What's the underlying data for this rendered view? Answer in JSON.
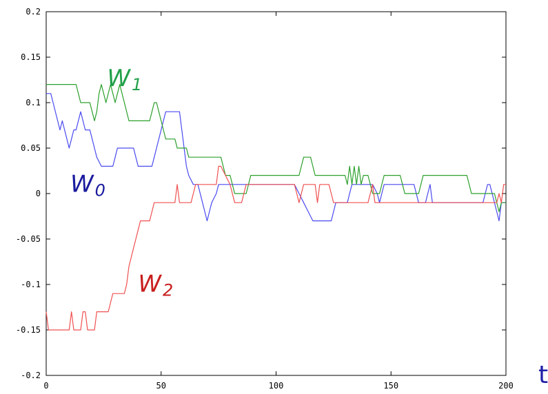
{
  "chart_data": {
    "type": "line",
    "title": "",
    "xlabel": "t",
    "ylabel": "",
    "xlim": [
      0,
      200
    ],
    "ylim": [
      -0.2,
      0.2
    ],
    "xticks": [
      0,
      50,
      100,
      150,
      200
    ],
    "xtick_labels": [
      "0",
      "50",
      "100",
      "150",
      "200"
    ],
    "yticks": [
      -0.2,
      -0.15,
      -0.1,
      -0.05,
      0,
      0.05,
      0.1,
      0.15,
      0.2
    ],
    "ytick_labels": [
      "-0.2",
      "-0.15",
      "-0.1",
      "-0.05",
      "0",
      "0.05",
      "0.1",
      "0.15",
      "0.2"
    ],
    "grid": false,
    "legend": "inline labels",
    "series": [
      {
        "name": "W0",
        "label_main": "W",
        "label_sub": "0",
        "color": "#4a4af0",
        "label_color": "#1a1a9e",
        "points": [
          [
            0,
            0.11
          ],
          [
            2,
            0.11
          ],
          [
            3,
            0.1
          ],
          [
            5,
            0.08
          ],
          [
            6,
            0.07
          ],
          [
            7,
            0.08
          ],
          [
            8,
            0.07
          ],
          [
            9,
            0.06
          ],
          [
            10,
            0.05
          ],
          [
            11,
            0.06
          ],
          [
            12,
            0.07
          ],
          [
            13,
            0.07
          ],
          [
            14,
            0.08
          ],
          [
            15,
            0.09
          ],
          [
            16,
            0.08
          ],
          [
            17,
            0.07
          ],
          [
            19,
            0.07
          ],
          [
            20,
            0.06
          ],
          [
            21,
            0.05
          ],
          [
            22,
            0.04
          ],
          [
            24,
            0.03
          ],
          [
            29,
            0.03
          ],
          [
            30,
            0.04
          ],
          [
            31,
            0.05
          ],
          [
            38,
            0.05
          ],
          [
            39,
            0.04
          ],
          [
            40,
            0.03
          ],
          [
            46,
            0.03
          ],
          [
            47,
            0.04
          ],
          [
            48,
            0.05
          ],
          [
            49,
            0.06
          ],
          [
            50,
            0.07
          ],
          [
            51,
            0.08
          ],
          [
            52,
            0.09
          ],
          [
            58,
            0.09
          ],
          [
            59,
            0.07
          ],
          [
            60,
            0.05
          ],
          [
            61,
            0.03
          ],
          [
            62,
            0.02
          ],
          [
            64,
            0.01
          ],
          [
            66,
            0.01
          ],
          [
            67,
            0.0
          ],
          [
            68,
            -0.01
          ],
          [
            69,
            -0.02
          ],
          [
            70,
            -0.03
          ],
          [
            71,
            -0.02
          ],
          [
            72,
            -0.01
          ],
          [
            74,
            0.0
          ],
          [
            75,
            0.01
          ],
          [
            76,
            0.01
          ],
          [
            82,
            0.01
          ],
          [
            88,
            0.01
          ],
          [
            108,
            0.01
          ],
          [
            110,
            0.0
          ],
          [
            112,
            -0.01
          ],
          [
            114,
            -0.02
          ],
          [
            116,
            -0.03
          ],
          [
            124,
            -0.03
          ],
          [
            125,
            -0.02
          ],
          [
            126,
            -0.01
          ],
          [
            131,
            -0.01
          ],
          [
            132,
            0.0
          ],
          [
            133,
            0.01
          ],
          [
            142,
            0.01
          ],
          [
            144,
            0.0
          ],
          [
            145,
            -0.01
          ],
          [
            146,
            0.0
          ],
          [
            147,
            0.01
          ],
          [
            160,
            0.01
          ],
          [
            161,
            0.0
          ],
          [
            162,
            -0.01
          ],
          [
            165,
            -0.01
          ],
          [
            166,
            0.0
          ],
          [
            167,
            0.01
          ],
          [
            168,
            -0.01
          ],
          [
            190,
            -0.01
          ],
          [
            191,
            0.0
          ],
          [
            192,
            0.01
          ],
          [
            193,
            0.01
          ],
          [
            194,
            0.0
          ],
          [
            195,
            -0.01
          ],
          [
            196,
            -0.02
          ],
          [
            197,
            -0.03
          ],
          [
            198,
            -0.01
          ],
          [
            200,
            -0.01
          ]
        ]
      },
      {
        "name": "W1",
        "label_main": "W",
        "label_sub": "1",
        "color": "#2ca02c",
        "label_color": "#22a04a",
        "points": [
          [
            0,
            0.12
          ],
          [
            13,
            0.12
          ],
          [
            14,
            0.11
          ],
          [
            15,
            0.1
          ],
          [
            19,
            0.1
          ],
          [
            20,
            0.09
          ],
          [
            21,
            0.08
          ],
          [
            22,
            0.09
          ],
          [
            23,
            0.11
          ],
          [
            24,
            0.12
          ],
          [
            25,
            0.11
          ],
          [
            26,
            0.1
          ],
          [
            28,
            0.12
          ],
          [
            29,
            0.11
          ],
          [
            30,
            0.1
          ],
          [
            31,
            0.11
          ],
          [
            32,
            0.12
          ],
          [
            33,
            0.11
          ],
          [
            34,
            0.1
          ],
          [
            35,
            0.09
          ],
          [
            36,
            0.08
          ],
          [
            45,
            0.08
          ],
          [
            46,
            0.09
          ],
          [
            47,
            0.1
          ],
          [
            48,
            0.1
          ],
          [
            49,
            0.09
          ],
          [
            50,
            0.08
          ],
          [
            51,
            0.07
          ],
          [
            52,
            0.06
          ],
          [
            56,
            0.06
          ],
          [
            57,
            0.05
          ],
          [
            61,
            0.05
          ],
          [
            62,
            0.04
          ],
          [
            64,
            0.04
          ],
          [
            76,
            0.04
          ],
          [
            77,
            0.03
          ],
          [
            78,
            0.02
          ],
          [
            80,
            0.02
          ],
          [
            81,
            0.01
          ],
          [
            82,
            0.0
          ],
          [
            87,
            0.0
          ],
          [
            88,
            0.01
          ],
          [
            89,
            0.02
          ],
          [
            110,
            0.02
          ],
          [
            111,
            0.03
          ],
          [
            112,
            0.04
          ],
          [
            115,
            0.04
          ],
          [
            116,
            0.03
          ],
          [
            117,
            0.02
          ],
          [
            130,
            0.02
          ],
          [
            131,
            0.01
          ],
          [
            132,
            0.03
          ],
          [
            133,
            0.01
          ],
          [
            134,
            0.03
          ],
          [
            135,
            0.01
          ],
          [
            136,
            0.03
          ],
          [
            137,
            0.01
          ],
          [
            138,
            0.02
          ],
          [
            140,
            0.02
          ],
          [
            141,
            0.01
          ],
          [
            142,
            0.0
          ],
          [
            145,
            0.0
          ],
          [
            146,
            0.01
          ],
          [
            147,
            0.02
          ],
          [
            154,
            0.02
          ],
          [
            155,
            0.01
          ],
          [
            156,
            0.0
          ],
          [
            162,
            0.0
          ],
          [
            163,
            0.01
          ],
          [
            164,
            0.02
          ],
          [
            183,
            0.02
          ],
          [
            184,
            0.01
          ],
          [
            185,
            0.0
          ],
          [
            195,
            0.0
          ],
          [
            196,
            -0.01
          ],
          [
            197,
            -0.02
          ],
          [
            198,
            -0.01
          ],
          [
            200,
            -0.01
          ]
        ]
      },
      {
        "name": "W2",
        "label_main": "W",
        "label_sub": "2",
        "color": "#f05050",
        "label_color": "#c81e1e",
        "points": [
          [
            0,
            -0.13
          ],
          [
            1,
            -0.15
          ],
          [
            10,
            -0.15
          ],
          [
            11,
            -0.13
          ],
          [
            12,
            -0.15
          ],
          [
            15,
            -0.15
          ],
          [
            16,
            -0.13
          ],
          [
            17,
            -0.13
          ],
          [
            18,
            -0.15
          ],
          [
            21,
            -0.15
          ],
          [
            22,
            -0.13
          ],
          [
            27,
            -0.13
          ],
          [
            28,
            -0.12
          ],
          [
            29,
            -0.11
          ],
          [
            34,
            -0.11
          ],
          [
            35,
            -0.1
          ],
          [
            36,
            -0.08
          ],
          [
            37,
            -0.07
          ],
          [
            38,
            -0.06
          ],
          [
            39,
            -0.05
          ],
          [
            40,
            -0.04
          ],
          [
            41,
            -0.03
          ],
          [
            45,
            -0.03
          ],
          [
            46,
            -0.02
          ],
          [
            47,
            -0.01
          ],
          [
            56,
            -0.01
          ],
          [
            57,
            0.01
          ],
          [
            58,
            -0.01
          ],
          [
            63,
            -0.01
          ],
          [
            64,
            0.0
          ],
          [
            65,
            0.01
          ],
          [
            74,
            0.01
          ],
          [
            75,
            0.03
          ],
          [
            76,
            0.03
          ],
          [
            78,
            0.02
          ],
          [
            80,
            0.01
          ],
          [
            81,
            0.0
          ],
          [
            82,
            -0.01
          ],
          [
            85,
            -0.01
          ],
          [
            86,
            0.0
          ],
          [
            87,
            0.01
          ],
          [
            108,
            0.01
          ],
          [
            109,
            0.0
          ],
          [
            110,
            -0.01
          ],
          [
            111,
            0.0
          ],
          [
            112,
            0.01
          ],
          [
            117,
            0.01
          ],
          [
            118,
            -0.01
          ],
          [
            119,
            0.01
          ],
          [
            123,
            0.01
          ],
          [
            124,
            0.0
          ],
          [
            125,
            -0.01
          ],
          [
            140,
            -0.01
          ],
          [
            141,
            0.0
          ],
          [
            142,
            0.01
          ],
          [
            143,
            -0.01
          ],
          [
            196,
            -0.01
          ],
          [
            197,
            0.0
          ],
          [
            198,
            -0.01
          ],
          [
            199,
            0.01
          ],
          [
            200,
            0.01
          ]
        ]
      }
    ],
    "label_positions": [
      {
        "series": "W0",
        "x": 10.5,
        "y": 0.002
      },
      {
        "series": "W1",
        "x": 26.5,
        "y": 0.118
      },
      {
        "series": "W2",
        "x": 40,
        "y": -0.108
      }
    ]
  }
}
